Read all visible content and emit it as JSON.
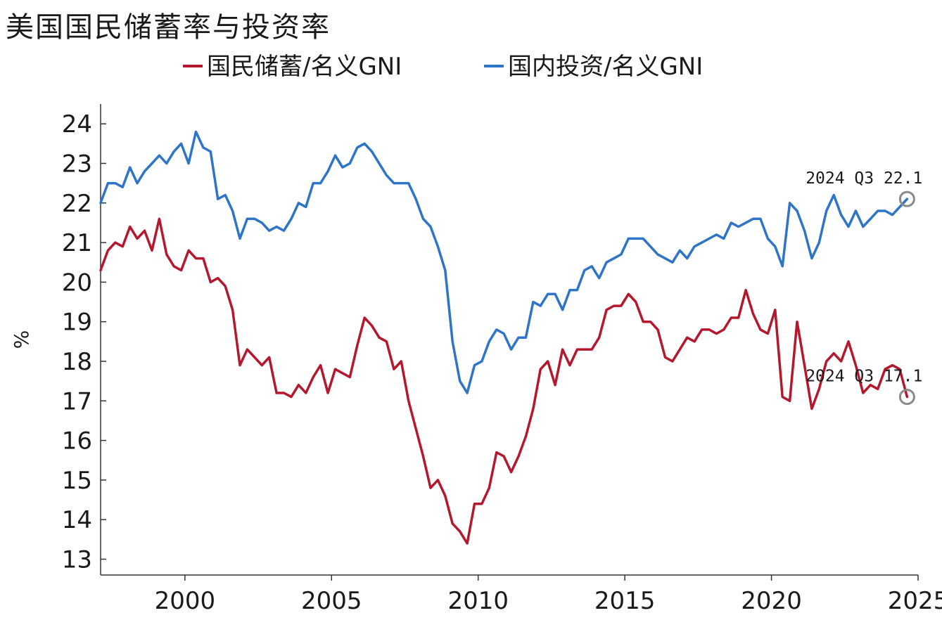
{
  "chart_data": {
    "type": "line",
    "title": "美国国民储蓄率与投资率",
    "ylabel": "%",
    "xlabel": "",
    "xlim": [
      1997.125,
      2025
    ],
    "ylim": [
      12.6,
      24.5
    ],
    "x_ticks": [
      2000,
      2005,
      2010,
      2015,
      2020,
      2025
    ],
    "y_ticks": [
      13,
      14,
      15,
      16,
      17,
      18,
      19,
      20,
      21,
      22,
      23,
      24
    ],
    "legend_position": "top-center",
    "grid": false,
    "x_start": 1997.125,
    "x_step": 0.25,
    "series": [
      {
        "name": "国民储蓄/名义GNI",
        "color": "#b5172d",
        "values": [
          20.3,
          20.8,
          21.0,
          20.9,
          21.4,
          21.1,
          21.3,
          20.8,
          21.6,
          20.7,
          20.4,
          20.3,
          20.8,
          20.6,
          20.6,
          20.0,
          20.1,
          19.9,
          19.3,
          17.9,
          18.3,
          18.1,
          17.9,
          18.1,
          17.2,
          17.2,
          17.1,
          17.4,
          17.2,
          17.6,
          17.9,
          17.2,
          17.8,
          17.7,
          17.6,
          18.4,
          19.1,
          18.9,
          18.6,
          18.5,
          17.8,
          18.0,
          17.0,
          16.3,
          15.6,
          14.8,
          15.0,
          14.6,
          13.9,
          13.7,
          13.4,
          14.4,
          14.4,
          14.8,
          15.7,
          15.6,
          15.2,
          15.6,
          16.1,
          16.8,
          17.8,
          18.0,
          17.4,
          18.3,
          17.9,
          18.3,
          18.3,
          18.3,
          18.6,
          19.3,
          19.4,
          19.4,
          19.7,
          19.5,
          19.0,
          19.0,
          18.8,
          18.1,
          18.0,
          18.3,
          18.6,
          18.5,
          18.8,
          18.8,
          18.7,
          18.8,
          19.1,
          19.1,
          19.8,
          19.2,
          18.8,
          18.7,
          19.3,
          17.1,
          17.0,
          19.0,
          17.9,
          16.8,
          17.3,
          18.0,
          18.2,
          18.0,
          18.5,
          17.9,
          17.2,
          17.4,
          17.3,
          17.8,
          17.9,
          17.8,
          17.1
        ]
      },
      {
        "name": "国内投资/名义GNI",
        "color": "#2e75c7",
        "values": [
          22.0,
          22.5,
          22.5,
          22.4,
          22.9,
          22.5,
          22.8,
          23.0,
          23.2,
          23.0,
          23.3,
          23.5,
          23.0,
          23.8,
          23.4,
          23.3,
          22.1,
          22.2,
          21.8,
          21.1,
          21.6,
          21.6,
          21.5,
          21.3,
          21.4,
          21.3,
          21.6,
          22.0,
          21.9,
          22.5,
          22.5,
          22.8,
          23.2,
          22.9,
          23.0,
          23.4,
          23.5,
          23.3,
          23.0,
          22.7,
          22.5,
          22.5,
          22.5,
          22.1,
          21.6,
          21.4,
          20.9,
          20.3,
          18.5,
          17.5,
          17.2,
          17.9,
          18.0,
          18.5,
          18.8,
          18.7,
          18.3,
          18.6,
          18.6,
          19.5,
          19.4,
          19.7,
          19.7,
          19.3,
          19.8,
          19.8,
          20.3,
          20.4,
          20.1,
          20.5,
          20.6,
          20.7,
          21.1,
          21.1,
          21.1,
          20.9,
          20.7,
          20.6,
          20.5,
          20.8,
          20.6,
          20.9,
          21.0,
          21.1,
          21.2,
          21.1,
          21.5,
          21.4,
          21.5,
          21.6,
          21.6,
          21.1,
          20.9,
          20.4,
          22.0,
          21.8,
          21.3,
          20.6,
          21.0,
          21.8,
          22.2,
          21.7,
          21.4,
          21.8,
          21.4,
          21.6,
          21.8,
          21.8,
          21.7,
          21.9,
          22.1
        ]
      }
    ],
    "annotations": [
      {
        "text": "2024 Q3  22.1",
        "x": 2024.625,
        "y": 22.1
      },
      {
        "text": "2024 Q3  17.1",
        "x": 2024.625,
        "y": 17.1
      }
    ]
  }
}
